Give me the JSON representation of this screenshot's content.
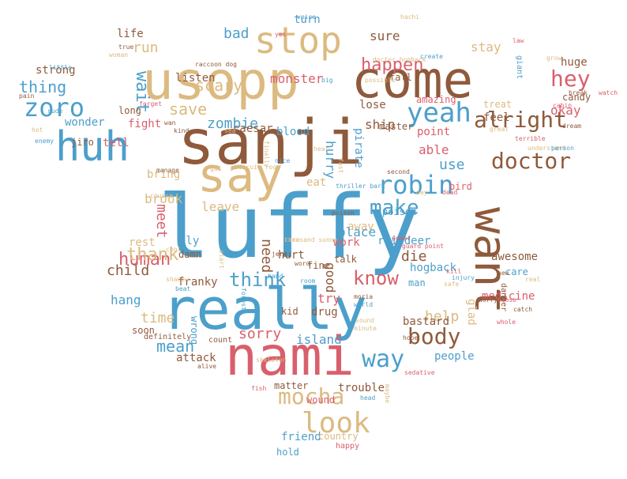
{
  "palette": {
    "tan": "#dcba80",
    "brown": "#8f5a3b",
    "blue": "#4c9fcb",
    "red": "#d95f6c"
  },
  "words": [
    "luffy",
    "sanji",
    "really",
    "usopp",
    "come",
    "nami",
    "say",
    "huh",
    "stop",
    "want",
    "yeah",
    "alright",
    "zoro",
    "hey",
    "doctor",
    "robin",
    "make",
    "know",
    "way",
    "look",
    "mocha",
    "body",
    "human",
    "thank",
    "think",
    "mean",
    "happen",
    "wait",
    "thing",
    "zombie",
    "save",
    "scary",
    "bad",
    "run",
    "life",
    "strong",
    "wonder",
    "fight",
    "tell",
    "jiro",
    "caesar",
    "long",
    "monster",
    "listen",
    "raccoon dog",
    "ship",
    "lose",
    "master",
    "point",
    "able",
    "use",
    "hurry",
    "pirate",
    "okay",
    "feel",
    "stay",
    "amazing",
    "treat",
    "huge",
    "candy",
    "sure",
    "turn",
    "fall",
    "brook",
    "bring",
    "eat",
    "bird",
    "leave",
    "meet",
    "away",
    "child",
    "need",
    "good",
    "die",
    "place",
    "work",
    "hurt",
    "talk",
    "try",
    "help",
    "franky",
    "hogback",
    "time",
    "hang",
    "sorry",
    "island",
    "people",
    "drug",
    "kid",
    "bastard",
    "glad",
    "medicine",
    "care",
    "awesome",
    "reindeer",
    "fine",
    "man",
    "poison",
    "rest",
    "fly",
    "damn",
    "attack",
    "definitely",
    "soon",
    "wrong",
    "count",
    "matter",
    "trouble",
    "wound",
    "friend",
    "country",
    "hold",
    "happy",
    "alive",
    "fish",
    "head",
    "sedative",
    "maybe",
    "hope",
    "kill",
    "safe",
    "catch",
    "whole",
    "danger",
    "new",
    "real",
    "close",
    "world",
    "moria",
    "injury",
    "guard point",
    "power",
    "jerk",
    "word",
    "hand",
    "room",
    "start",
    "shadow",
    "biscuit room",
    "kind",
    "wan",
    "sea",
    "gas",
    "finally",
    "blood",
    "nice",
    "hear",
    "second",
    "day",
    "dead",
    "poison",
    "terrible",
    "great",
    "dream",
    "understand",
    "person",
    "cabin",
    "break",
    "watch",
    "grow",
    "giant",
    "law",
    "doctor hogback",
    "hachi",
    "voice",
    "yes",
    "woman",
    "big",
    "create",
    "little",
    "pain",
    "rude",
    "hot",
    "enemy",
    "true",
    "forget",
    "cool",
    "manage",
    "course",
    "thriller bark",
    "fast",
    "possible",
    "sound",
    "beat",
    "forest",
    "minute",
    "skeleton",
    "worry",
    "thousand sunny",
    "care"
  ]
}
